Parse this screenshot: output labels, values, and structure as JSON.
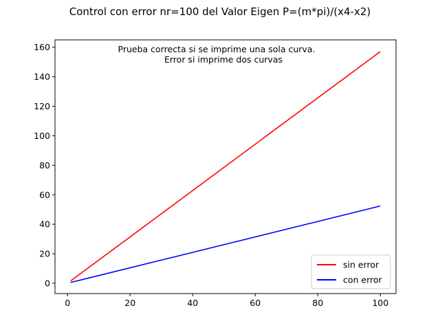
{
  "chart_data": {
    "type": "line",
    "title": "Control con error nr=100 del Valor Eigen P=(m*pi)/(x4-x2)",
    "xlabel": "",
    "ylabel": "",
    "xlim": [
      -4,
      105
    ],
    "ylim": [
      -7,
      165
    ],
    "xticks": [
      0,
      20,
      40,
      60,
      80,
      100
    ],
    "yticks": [
      0,
      20,
      40,
      60,
      80,
      100,
      120,
      140,
      160
    ],
    "grid": false,
    "legend_position": "lower-right",
    "annotation": [
      "Prueba correcta si se imprime una sola curva.",
      "Error si imprime dos curvas"
    ],
    "series": [
      {
        "name": "sin error",
        "color": "#ff0000",
        "x": [
          1,
          100
        ],
        "y": [
          1.57,
          157.08
        ]
      },
      {
        "name": "con error",
        "color": "#0000ff",
        "x": [
          1,
          100
        ],
        "y": [
          0.52,
          52.36
        ]
      }
    ]
  }
}
